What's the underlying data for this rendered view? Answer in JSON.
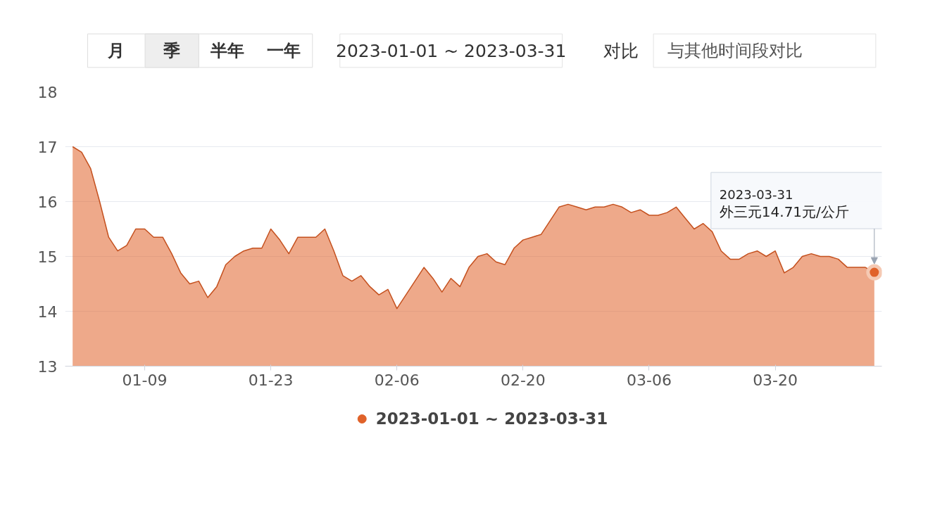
{
  "chart_data": {
    "type": "area",
    "x": [
      "2023-01-01",
      "2023-01-02",
      "2023-01-03",
      "2023-01-04",
      "2023-01-05",
      "2023-01-06",
      "2023-01-07",
      "2023-01-08",
      "2023-01-09",
      "2023-01-10",
      "2023-01-11",
      "2023-01-12",
      "2023-01-13",
      "2023-01-14",
      "2023-01-15",
      "2023-01-16",
      "2023-01-17",
      "2023-01-18",
      "2023-01-19",
      "2023-01-20",
      "2023-01-21",
      "2023-01-22",
      "2023-01-23",
      "2023-01-24",
      "2023-01-25",
      "2023-01-26",
      "2023-01-27",
      "2023-01-28",
      "2023-01-29",
      "2023-01-30",
      "2023-01-31",
      "2023-02-01",
      "2023-02-02",
      "2023-02-03",
      "2023-02-04",
      "2023-02-05",
      "2023-02-06",
      "2023-02-07",
      "2023-02-08",
      "2023-02-09",
      "2023-02-10",
      "2023-02-11",
      "2023-02-12",
      "2023-02-13",
      "2023-02-14",
      "2023-02-15",
      "2023-02-16",
      "2023-02-17",
      "2023-02-18",
      "2023-02-19",
      "2023-02-20",
      "2023-02-21",
      "2023-02-22",
      "2023-02-23",
      "2023-02-24",
      "2023-02-25",
      "2023-02-26",
      "2023-02-27",
      "2023-02-28",
      "2023-03-01",
      "2023-03-02",
      "2023-03-03",
      "2023-03-04",
      "2023-03-05",
      "2023-03-06",
      "2023-03-07",
      "2023-03-08",
      "2023-03-09",
      "2023-03-10",
      "2023-03-11",
      "2023-03-12",
      "2023-03-13",
      "2023-03-14",
      "2023-03-15",
      "2023-03-16",
      "2023-03-17",
      "2023-03-18",
      "2023-03-19",
      "2023-03-20",
      "2023-03-21",
      "2023-03-22",
      "2023-03-23",
      "2023-03-24",
      "2023-03-25",
      "2023-03-26",
      "2023-03-27",
      "2023-03-28",
      "2023-03-29",
      "2023-03-30",
      "2023-03-31"
    ],
    "series": [
      {
        "name": "2023-01-01 ~ 2023-03-31",
        "color": "#e0622a",
        "values": [
          17.0,
          16.9,
          16.6,
          16.0,
          15.35,
          15.1,
          15.2,
          15.5,
          15.5,
          15.35,
          15.35,
          15.05,
          14.7,
          14.5,
          14.55,
          14.25,
          14.45,
          14.85,
          15.0,
          15.1,
          15.15,
          15.15,
          15.5,
          15.3,
          15.05,
          15.35,
          15.35,
          15.35,
          15.5,
          15.1,
          14.65,
          14.55,
          14.65,
          14.45,
          14.3,
          14.4,
          14.05,
          14.3,
          14.55,
          14.8,
          14.6,
          14.35,
          14.6,
          14.45,
          14.8,
          15.0,
          15.05,
          14.9,
          14.85,
          15.15,
          15.3,
          15.35,
          15.4,
          15.65,
          15.9,
          15.95,
          15.9,
          15.85,
          15.9,
          15.9,
          15.95,
          15.9,
          15.8,
          15.85,
          15.75,
          15.75,
          15.8,
          15.9,
          15.7,
          15.5,
          15.6,
          15.45,
          15.1,
          14.95,
          14.95,
          15.05,
          15.1,
          15.0,
          15.1,
          14.7,
          14.8,
          15.0,
          15.05,
          15.0,
          15.0,
          14.95,
          14.8,
          14.8,
          14.8,
          14.71
        ]
      }
    ],
    "xlim": [
      "2022-12-31T04:00",
      "2023-03-31T20:00"
    ],
    "xticks": [
      {
        "value": "2023-01-09",
        "label": "01-09"
      },
      {
        "value": "2023-01-23",
        "label": "01-23"
      },
      {
        "value": "2023-02-06",
        "label": "02-06"
      },
      {
        "value": "2023-02-20",
        "label": "02-20"
      },
      {
        "value": "2023-03-06",
        "label": "03-06"
      },
      {
        "value": "2023-03-20",
        "label": "03-20"
      }
    ],
    "ylim": [
      13,
      18
    ],
    "yticks": [
      13,
      14,
      15,
      16,
      17,
      18
    ],
    "grid": "y",
    "legend": "bottom",
    "annotations": [
      "月",
      "季",
      "半年",
      "一年",
      "2023-01-01 ~ 2023-03-31",
      "对比",
      "与其他时间段对比",
      "2023-03-31\n外三元14.71元/公斤"
    ]
  }
}
